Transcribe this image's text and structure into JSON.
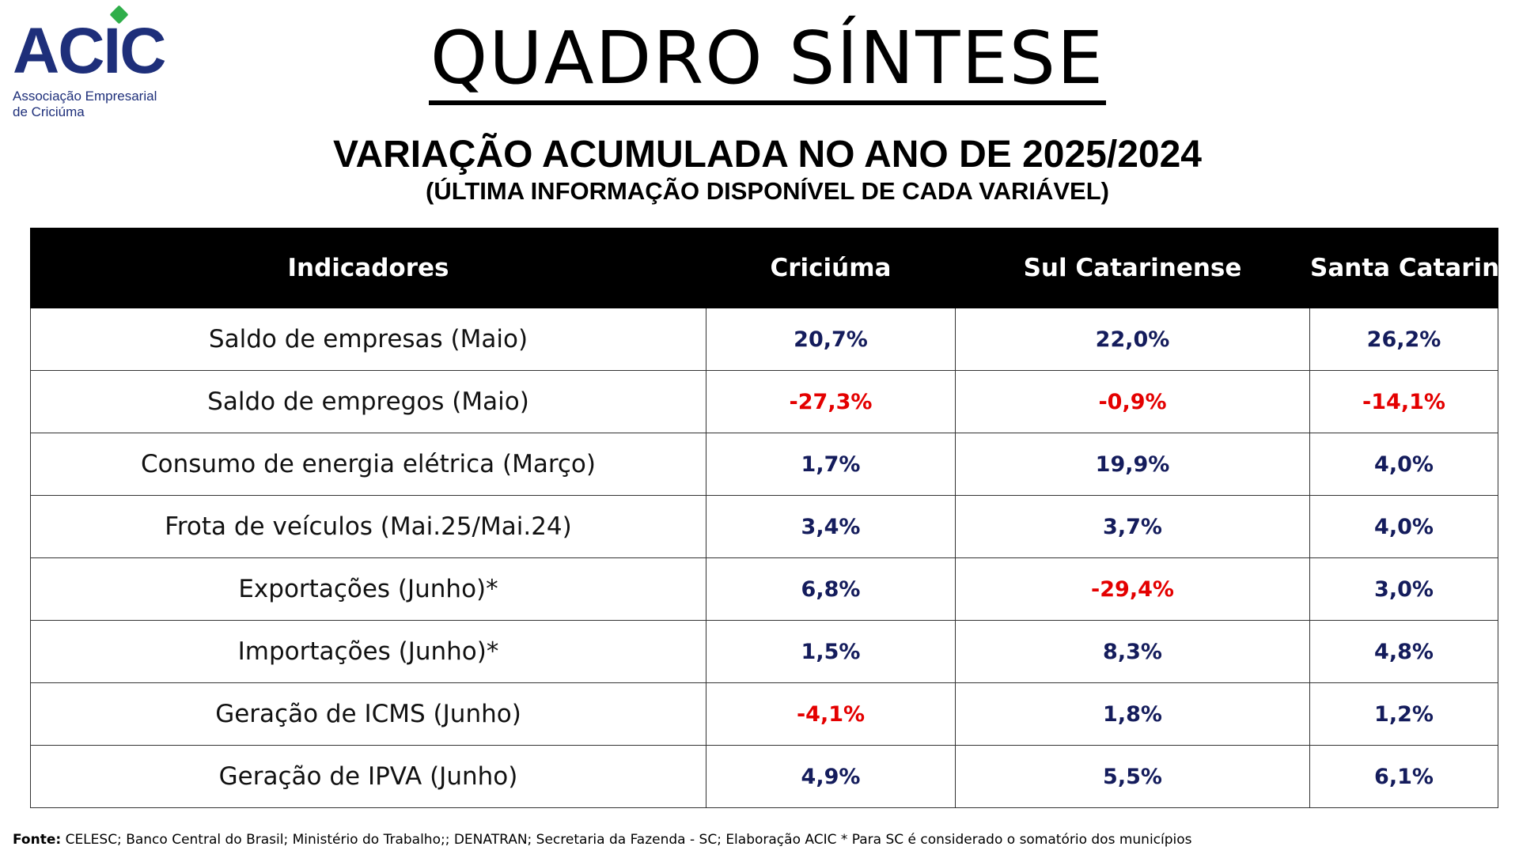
{
  "logo": {
    "word": "ACIC",
    "line1": "Associação Empresarial",
    "line2": "de Criciúma",
    "color": "#1e2f7a",
    "dot_color": "#2fae4a"
  },
  "title": "QUADRO SÍNTESE",
  "subtitle": "VARIAÇÃO ACUMULADA NO ANO DE 2025/2024",
  "subtitle2": "(ÚLTIMA INFORMAÇÃO DISPONÍVEL DE CADA VARIÁVEL)",
  "table": {
    "headers": [
      "Indicadores",
      "Criciúma",
      "Sul Catarinense",
      "Santa Catarina"
    ],
    "rows": [
      {
        "label": "Saldo de empresas (Maio)",
        "values": [
          "20,7%",
          "22,0%",
          "26,2%"
        ],
        "negative": [
          false,
          false,
          false
        ]
      },
      {
        "label": "Saldo de empregos (Maio)",
        "values": [
          "-27,3%",
          "-0,9%",
          "-14,1%"
        ],
        "negative": [
          true,
          true,
          true
        ]
      },
      {
        "label": "Consumo de energia elétrica (Março)",
        "values": [
          "1,7%",
          "19,9%",
          "4,0%"
        ],
        "negative": [
          false,
          false,
          false
        ]
      },
      {
        "label": "Frota de veículos (Mai.25/Mai.24)",
        "values": [
          "3,4%",
          "3,7%",
          "4,0%"
        ],
        "negative": [
          false,
          false,
          false
        ]
      },
      {
        "label": "Exportações (Junho)*",
        "values": [
          "6,8%",
          "-29,4%",
          "3,0%"
        ],
        "negative": [
          false,
          true,
          false
        ]
      },
      {
        "label": "Importações (Junho)*",
        "values": [
          "1,5%",
          "8,3%",
          "4,8%"
        ],
        "negative": [
          false,
          false,
          false
        ]
      },
      {
        "label": "Geração de ICMS (Junho)",
        "values": [
          "-4,1%",
          "1,8%",
          "1,2%"
        ],
        "negative": [
          true,
          false,
          false
        ]
      },
      {
        "label": "Geração de IPVA (Junho)",
        "values": [
          "4,9%",
          "5,5%",
          "6,1%"
        ],
        "negative": [
          false,
          false,
          false
        ]
      }
    ],
    "positive_color": "#141c5c",
    "negative_color": "#e40000"
  },
  "footer": {
    "label": "Fonte:",
    "text": " CELESC; Banco Central do Brasil; Ministério do Trabalho;; DENATRAN; Secretaria da Fazenda - SC; Elaboração ACIC * Para SC é considerado o somatório dos municípios"
  }
}
